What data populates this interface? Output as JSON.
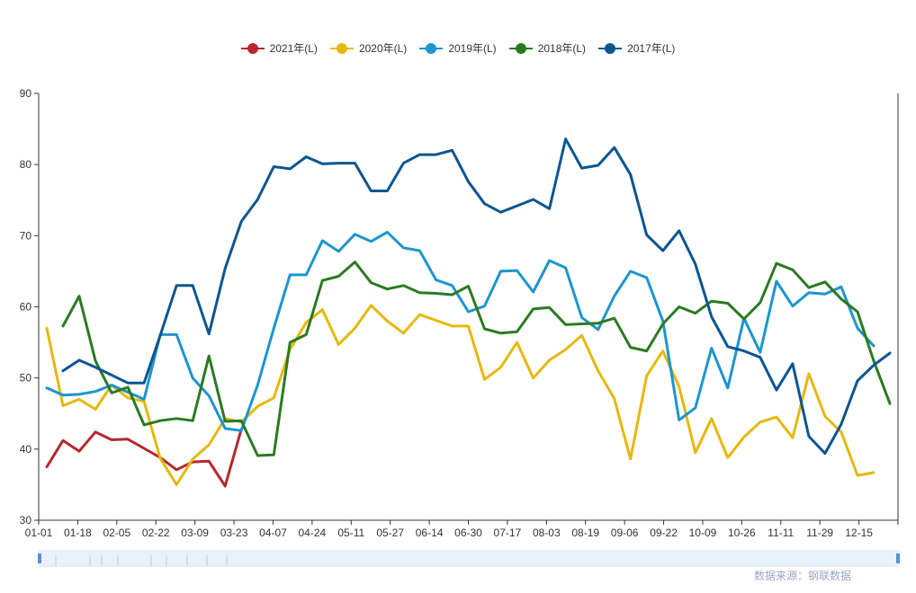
{
  "legend": {
    "position": "top-center",
    "items": [
      {
        "label": "2021年(L)",
        "color": "#b5282e"
      },
      {
        "label": "2020年(L)",
        "color": "#e6b80c"
      },
      {
        "label": "2019年(L)",
        "color": "#1d95cf"
      },
      {
        "label": "2018年(L)",
        "color": "#2b7a22"
      },
      {
        "label": "2017年(L)",
        "color": "#0b5591"
      }
    ]
  },
  "source_text": "数据来源：钢联数据",
  "chart_data": {
    "type": "line",
    "title": "",
    "xlabel": "",
    "ylabel": "",
    "ylim": [
      30,
      90
    ],
    "y_ticks": [
      30,
      40,
      50,
      60,
      70,
      80,
      90
    ],
    "x_tick_labels": [
      "01-01",
      "01-18",
      "02-05",
      "02-22",
      "03-09",
      "03-23",
      "04-07",
      "04-24",
      "05-11",
      "05-27",
      "06-14",
      "06-30",
      "07-17",
      "08-03",
      "08-19",
      "09-06",
      "09-22",
      "10-09",
      "10-26",
      "11-11",
      "11-29",
      "12-15"
    ],
    "x_count": 53,
    "grid": false,
    "series": [
      {
        "name": "2021年(L)",
        "color": "#b5282e",
        "values": [
          37.5,
          41.2,
          39.7,
          42.4,
          41.3,
          41.4,
          40.1,
          38.8,
          37.1,
          38.2,
          38.3,
          34.8,
          42.8
        ]
      },
      {
        "name": "2020年(L)",
        "color": "#e6b80c",
        "values": [
          57.0,
          46.1,
          47.0,
          45.6,
          49.0,
          47.2,
          46.7,
          38.7,
          35.0,
          38.6,
          40.6,
          44.3,
          43.8,
          46.0,
          47.2,
          54.0,
          57.8,
          59.6,
          54.7,
          57.0,
          60.2,
          58.0,
          56.3,
          58.9,
          58.1,
          57.3,
          57.3,
          49.8,
          51.5,
          55.0,
          50.0,
          52.5,
          54.0,
          56.0,
          51.0,
          47.1,
          38.6,
          50.3,
          53.8,
          48.8,
          39.5,
          44.3,
          38.8,
          41.7,
          43.8,
          44.5,
          41.6,
          50.6,
          44.6,
          42.4,
          36.3,
          36.7,
          null
        ]
      },
      {
        "name": "2019年(L)",
        "color": "#1d95cf",
        "values": [
          48.6,
          47.6,
          47.7,
          48.1,
          49.0,
          48.0,
          47.0,
          56.1,
          56.1,
          50.0,
          47.5,
          42.9,
          42.6,
          49.0,
          57.0,
          64.5,
          64.5,
          69.3,
          67.8,
          70.2,
          69.2,
          70.5,
          68.3,
          67.9,
          63.8,
          63.0,
          59.3,
          60.1,
          65.0,
          65.1,
          62.1,
          66.5,
          65.5,
          58.5,
          56.8,
          61.5,
          65.0,
          64.1,
          58.0,
          44.1,
          45.8,
          54.2,
          48.6,
          58.4,
          53.6,
          63.6,
          60.1,
          62.0,
          61.8,
          62.8,
          57.0,
          54.5,
          null
        ]
      },
      {
        "name": "2018年(L)",
        "color": "#2b7a22",
        "values": [
          null,
          57.3,
          61.5,
          52.4,
          47.9,
          48.7,
          43.4,
          44.0,
          44.3,
          44.0,
          53.1,
          43.9,
          44.0,
          39.1,
          39.2,
          55.0,
          56.1,
          63.7,
          64.3,
          66.3,
          63.4,
          62.5,
          63.0,
          62.0,
          61.9,
          61.7,
          62.9,
          56.9,
          56.3,
          56.5,
          59.7,
          59.9,
          57.5,
          57.6,
          57.7,
          58.4,
          54.3,
          53.8,
          57.6,
          60.0,
          59.1,
          60.8,
          60.5,
          58.3,
          60.6,
          66.1,
          65.2,
          62.7,
          63.5,
          61.1,
          59.3,
          52.4,
          46.4
        ]
      },
      {
        "name": "2017年(L)",
        "color": "#0b5591",
        "values": [
          null,
          51.0,
          52.5,
          51.5,
          50.4,
          49.3,
          49.3,
          56.0,
          63.0,
          63.0,
          56.2,
          65.4,
          72.0,
          75.1,
          79.7,
          79.4,
          81.1,
          80.1,
          80.2,
          80.2,
          76.3,
          76.3,
          80.2,
          81.4,
          81.4,
          82.0,
          77.6,
          74.5,
          73.3,
          74.2,
          75.1,
          73.8,
          83.6,
          79.5,
          79.9,
          82.4,
          78.6,
          70.1,
          67.9,
          70.7,
          66.0,
          58.6,
          54.4,
          53.8,
          52.9,
          48.3,
          52.0,
          41.8,
          39.4,
          43.5,
          49.6,
          51.8,
          53.5
        ]
      }
    ]
  }
}
